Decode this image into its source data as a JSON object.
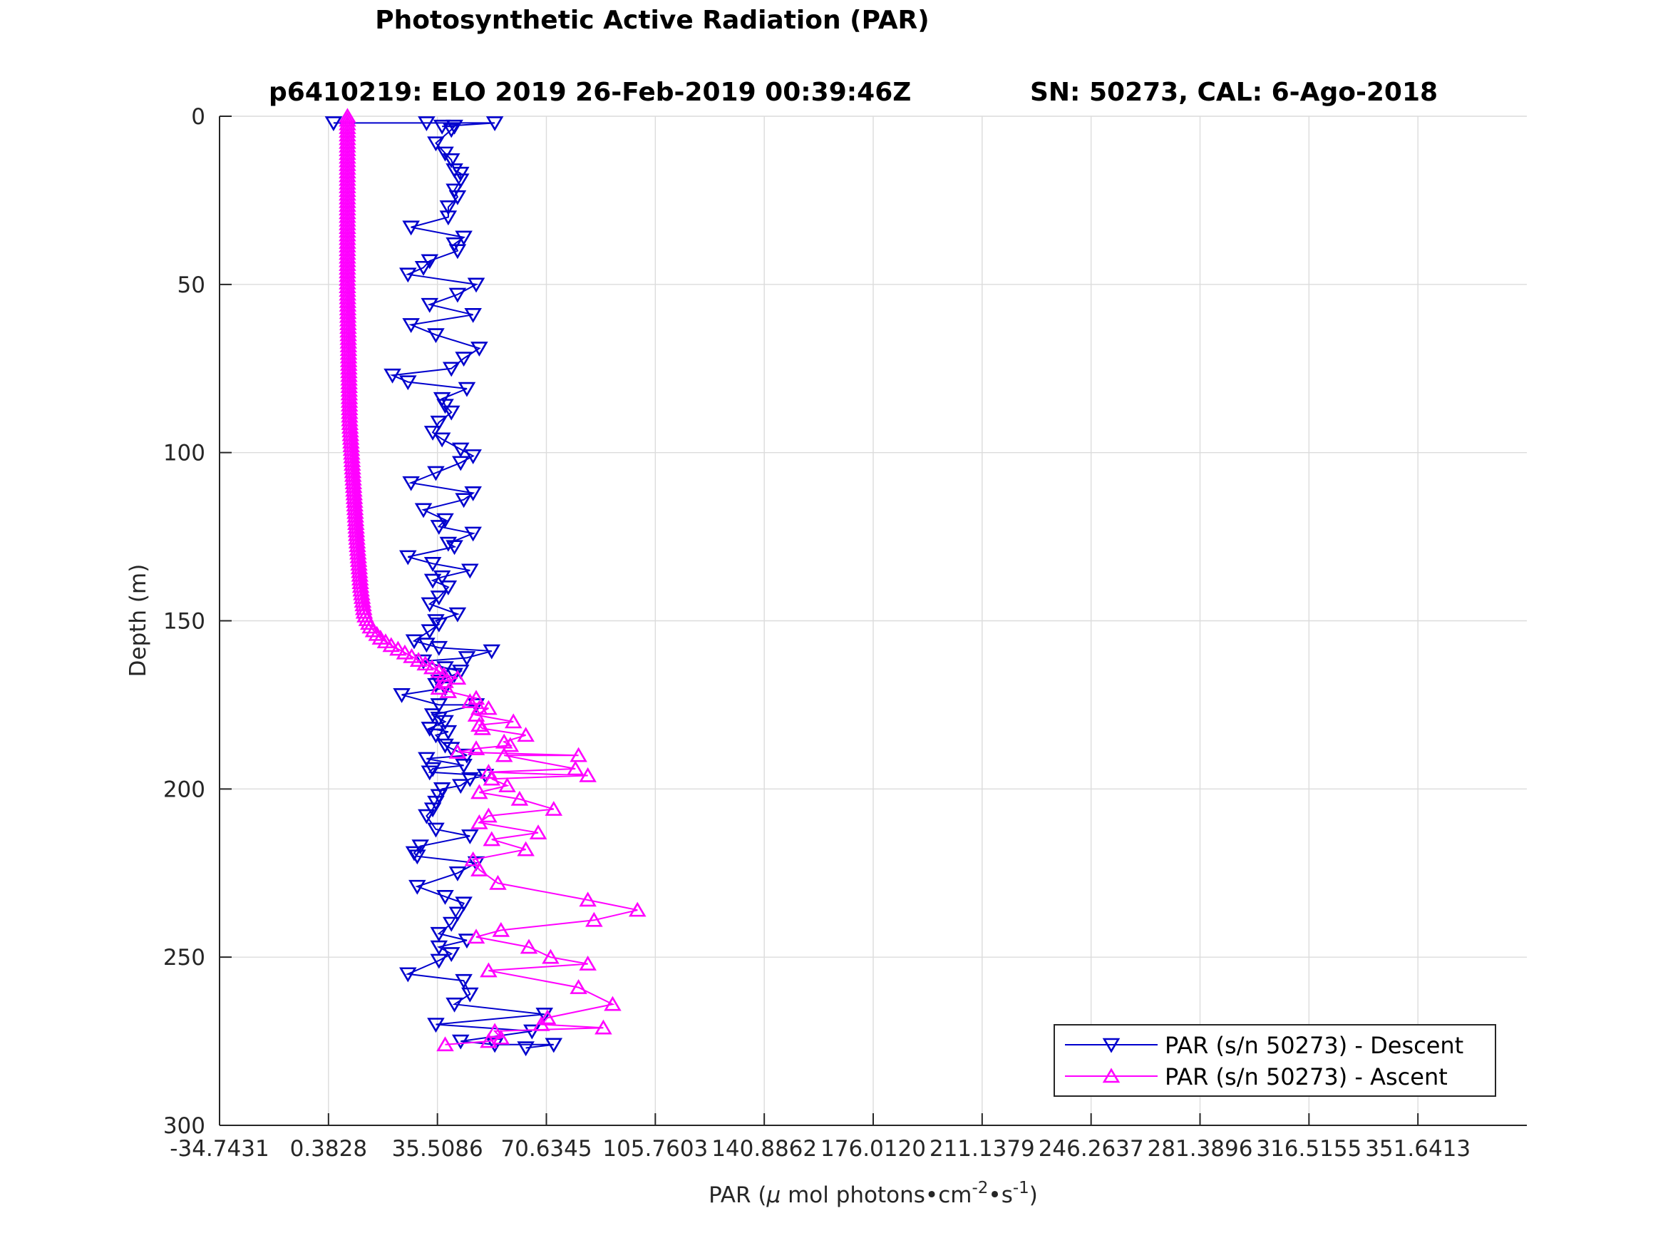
{
  "chart_data": {
    "type": "line",
    "title": "Photosynthetic Active Radiation (PAR)",
    "subtitle_left": "p6410219: ELO 2019 26-Feb-2019 00:39:46Z",
    "subtitle_right": "SN: 50273, CAL: 6-Ago-2018",
    "xlabel": "PAR (μ mol photons•cm⁻²•s⁻¹)",
    "xlabel_parts": {
      "prefix": "PAR (",
      "mu": "μ",
      "mid1": " mol photons•cm",
      "sup1": "-2",
      "mid2": "•s",
      "sup2": "-1",
      "suffix": ")"
    },
    "ylabel": "Depth (m)",
    "xlim": [
      -34.7431,
      386.767
    ],
    "ylim": [
      0,
      300
    ],
    "y_reversed": true,
    "grid": true,
    "legend_placement": "bottom-right",
    "x_ticks": [
      -34.7431,
      0.3828,
      35.5086,
      70.6345,
      105.7603,
      140.8862,
      176.012,
      211.1379,
      246.2637,
      281.3896,
      316.5155,
      351.6413
    ],
    "x_tick_labels": [
      "-34.7431",
      "0.3828",
      "35.5086",
      "70.6345",
      "105.7603",
      "140.8862",
      "176.0120",
      "211.1379",
      "246.2637",
      "281.3896",
      "316.5155",
      "351.6413"
    ],
    "y_ticks": [
      0,
      50,
      100,
      150,
      200,
      250,
      300
    ],
    "y_tick_labels": [
      "0",
      "50",
      "100",
      "150",
      "200",
      "250",
      "300"
    ],
    "series": [
      {
        "name": "PAR (s/n 50273) - Descent",
        "color": "#0000cd",
        "marker": "triangle-down",
        "points": [
          [
            2,
            2
          ],
          [
            32,
            2
          ],
          [
            54,
            2
          ],
          [
            37,
            3
          ],
          [
            40,
            4
          ],
          [
            41,
            3
          ],
          [
            35,
            8
          ],
          [
            38,
            11
          ],
          [
            40,
            13
          ],
          [
            41,
            16
          ],
          [
            43,
            17
          ],
          [
            43,
            19
          ],
          [
            41,
            22
          ],
          [
            42,
            24
          ],
          [
            39,
            27
          ],
          [
            39,
            30
          ],
          [
            27,
            33
          ],
          [
            44,
            36
          ],
          [
            41,
            38
          ],
          [
            42,
            40
          ],
          [
            33,
            43
          ],
          [
            31,
            45
          ],
          [
            26,
            47
          ],
          [
            48,
            50
          ],
          [
            42,
            53
          ],
          [
            33,
            56
          ],
          [
            47,
            59
          ],
          [
            27,
            62
          ],
          [
            35,
            65
          ],
          [
            49,
            69
          ],
          [
            44,
            72
          ],
          [
            40,
            75
          ],
          [
            21,
            77
          ],
          [
            26,
            79
          ],
          [
            45,
            81
          ],
          [
            37,
            84
          ],
          [
            38,
            86
          ],
          [
            40,
            88
          ],
          [
            36,
            91
          ],
          [
            34,
            94
          ],
          [
            37,
            96
          ],
          [
            43,
            99
          ],
          [
            47,
            101
          ],
          [
            43,
            103
          ],
          [
            35,
            106
          ],
          [
            27,
            109
          ],
          [
            47,
            112
          ],
          [
            44,
            114
          ],
          [
            31,
            117
          ],
          [
            38,
            120
          ],
          [
            36,
            122
          ],
          [
            47,
            124
          ],
          [
            39,
            127
          ],
          [
            41,
            128
          ],
          [
            26,
            131
          ],
          [
            34,
            133
          ],
          [
            46,
            135
          ],
          [
            37,
            137
          ],
          [
            34,
            138
          ],
          [
            39,
            140
          ],
          [
            36,
            143
          ],
          [
            33,
            145
          ],
          [
            42,
            148
          ],
          [
            35,
            150
          ],
          [
            36,
            151
          ],
          [
            33,
            153
          ],
          [
            28,
            156
          ],
          [
            32,
            157
          ],
          [
            36,
            158
          ],
          [
            53,
            159
          ],
          [
            45,
            161
          ],
          [
            31,
            162
          ],
          [
            38,
            164
          ],
          [
            43,
            165
          ],
          [
            41,
            166
          ],
          [
            36,
            168
          ],
          [
            35,
            169
          ],
          [
            38,
            170
          ],
          [
            24,
            172
          ],
          [
            36,
            175
          ],
          [
            48,
            175
          ],
          [
            34,
            178
          ],
          [
            36,
            179
          ],
          [
            38,
            180
          ],
          [
            33,
            182
          ],
          [
            39,
            183
          ],
          [
            35,
            184
          ],
          [
            38,
            187
          ],
          [
            40,
            188
          ],
          [
            45,
            190
          ],
          [
            32,
            191
          ],
          [
            44,
            193
          ],
          [
            34,
            194
          ],
          [
            33,
            195
          ],
          [
            51,
            196
          ],
          [
            46,
            197
          ],
          [
            43,
            199
          ],
          [
            37,
            200
          ],
          [
            36,
            202
          ],
          [
            35,
            204
          ],
          [
            34,
            206
          ],
          [
            32,
            208
          ],
          [
            35,
            212
          ],
          [
            46,
            214
          ],
          [
            30,
            217
          ],
          [
            28,
            219
          ],
          [
            29,
            220
          ],
          [
            48,
            222
          ],
          [
            42,
            225
          ],
          [
            29,
            229
          ],
          [
            38,
            232
          ],
          [
            44,
            234
          ],
          [
            42,
            237
          ],
          [
            40,
            240
          ],
          [
            36,
            243
          ],
          [
            45,
            245
          ],
          [
            36,
            247
          ],
          [
            40,
            249
          ],
          [
            36,
            251
          ],
          [
            26,
            255
          ],
          [
            44,
            257
          ],
          [
            46,
            261
          ],
          [
            41,
            264
          ],
          [
            70,
            267
          ],
          [
            35,
            270
          ],
          [
            66,
            272
          ],
          [
            43,
            275
          ],
          [
            54,
            276
          ],
          [
            73,
            276
          ],
          [
            64,
            277
          ]
        ]
      },
      {
        "name": "PAR (s/n 50273) - Ascent",
        "color": "#ff00ff",
        "marker": "triangle-up",
        "profile": [
          [
            0,
            6.5
          ],
          [
            50,
            6.5
          ],
          [
            90,
            7.2
          ],
          [
            110,
            8.5
          ],
          [
            125,
            9.5
          ],
          [
            140,
            10.8
          ],
          [
            148,
            12
          ],
          [
            152,
            14
          ],
          [
            155,
            17
          ],
          [
            157,
            20
          ],
          [
            159,
            24
          ],
          [
            161,
            28
          ],
          [
            163,
            32
          ],
          [
            165,
            36
          ],
          [
            167,
            39
          ],
          [
            169,
            41
          ],
          [
            171,
            44
          ]
        ],
        "points": [
          [
            38,
            168
          ],
          [
            42,
            167
          ],
          [
            36,
            170
          ],
          [
            39,
            171
          ],
          [
            48,
            173
          ],
          [
            46,
            174
          ],
          [
            49,
            176
          ],
          [
            52,
            176
          ],
          [
            48,
            178
          ],
          [
            60,
            180
          ],
          [
            49,
            181
          ],
          [
            50,
            182
          ],
          [
            64,
            184
          ],
          [
            57,
            186
          ],
          [
            59,
            187
          ],
          [
            48,
            188
          ],
          [
            42,
            189
          ],
          [
            81,
            190
          ],
          [
            57,
            190
          ],
          [
            80,
            194
          ],
          [
            52,
            195
          ],
          [
            84,
            196
          ],
          [
            53,
            197
          ],
          [
            58,
            199
          ],
          [
            49,
            201
          ],
          [
            62,
            203
          ],
          [
            73,
            206
          ],
          [
            52,
            208
          ],
          [
            49,
            210
          ],
          [
            68,
            213
          ],
          [
            53,
            215
          ],
          [
            64,
            218
          ],
          [
            47,
            221
          ],
          [
            49,
            224
          ],
          [
            55,
            228
          ],
          [
            84,
            233
          ],
          [
            100,
            236
          ],
          [
            86,
            239
          ],
          [
            56,
            242
          ],
          [
            48,
            244
          ],
          [
            65,
            247
          ],
          [
            72,
            250
          ],
          [
            84,
            252
          ],
          [
            52,
            254
          ],
          [
            81,
            259
          ],
          [
            92,
            264
          ],
          [
            71,
            268
          ],
          [
            69,
            270
          ],
          [
            89,
            271
          ],
          [
            54,
            272
          ],
          [
            56,
            274
          ],
          [
            52,
            275
          ],
          [
            38,
            276
          ]
        ]
      }
    ]
  }
}
